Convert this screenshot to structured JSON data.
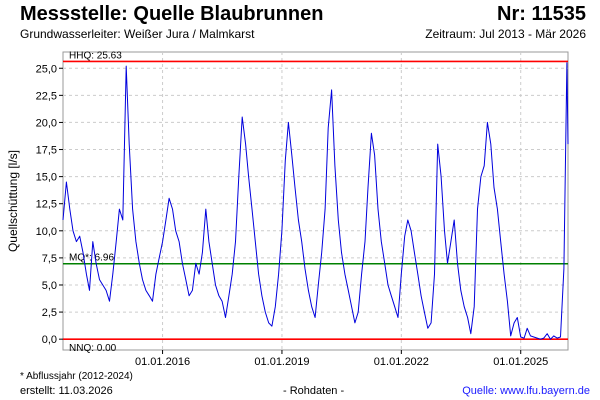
{
  "header": {
    "title": "Messstelle: Quelle Blaubrunnen",
    "number": "Nr: 11535",
    "aquifer": "Grundwasserleiter:  Weißer Jura / Malmkarst",
    "period": "Zeitraum: Jul 2013 - Mär 2026"
  },
  "footer": {
    "footnote": "* Abflussjahr (2012-2024)",
    "created": "erstellt:  11.03.2026",
    "rawdata": "- Rohdaten -",
    "source": "Quelle: www.lfu.bayern.de"
  },
  "colors": {
    "series": "#0000dd",
    "hhq": "#ff0000",
    "mq": "#008000",
    "nnq": "#ff0000",
    "grid": "#cccccc"
  },
  "chart_data": {
    "type": "line",
    "title": "Messstelle: Quelle Blaubrunnen",
    "ylabel": "Quellschüttung [l/s]",
    "xlabel": "",
    "ylim": [
      -1,
      26.5
    ],
    "xlim": [
      "2013-07-01",
      "2026-03-11"
    ],
    "grid": true,
    "y_ticks": [
      "0,0",
      "2,5",
      "5,0",
      "7,5",
      "10,0",
      "12,5",
      "15,0",
      "17,5",
      "20,0",
      "22,5",
      "25,0"
    ],
    "y_tick_values": [
      0,
      2.5,
      5,
      7.5,
      10,
      12.5,
      15,
      17.5,
      20,
      22.5,
      25
    ],
    "x_ticks": [
      {
        "date": "2016-01-01",
        "label": "01.01.2016"
      },
      {
        "date": "2019-01-01",
        "label": "01.01.2019"
      },
      {
        "date": "2022-01-01",
        "label": "01.01.2022"
      },
      {
        "date": "2025-01-01",
        "label": "01.01.2025"
      }
    ],
    "reference_lines": [
      {
        "label": "HHQ: 25.63",
        "value": 25.63
      },
      {
        "label": "MQ*: 6.96",
        "value": 6.96
      },
      {
        "label": "NNQ: 0.00",
        "value": 0.0
      }
    ],
    "series": [
      {
        "x": [
          "2013-07-01",
          "2013-08-01",
          "2013-09-01",
          "2013-10-01",
          "2013-11-01",
          "2013-12-01",
          "2014-01-01",
          "2014-02-01",
          "2014-03-01",
          "2014-04-01",
          "2014-05-01",
          "2014-06-01",
          "2014-07-01",
          "2014-08-01",
          "2014-09-01",
          "2014-10-01",
          "2014-11-01",
          "2014-12-01",
          "2015-01-01",
          "2015-02-01",
          "2015-03-01",
          "2015-04-01",
          "2015-05-01",
          "2015-06-01",
          "2015-07-01",
          "2015-08-01",
          "2015-09-01",
          "2015-10-01",
          "2015-11-01",
          "2015-12-01",
          "2016-01-01",
          "2016-02-01",
          "2016-03-01",
          "2016-04-01",
          "2016-05-01",
          "2016-06-01",
          "2016-07-01",
          "2016-08-01",
          "2016-09-01",
          "2016-10-01",
          "2016-11-01",
          "2016-12-01",
          "2017-01-01",
          "2017-02-01",
          "2017-03-01",
          "2017-04-01",
          "2017-05-01",
          "2017-06-01",
          "2017-07-01",
          "2017-08-01",
          "2017-09-01",
          "2017-10-01",
          "2017-11-01",
          "2017-12-01",
          "2018-01-01",
          "2018-02-01",
          "2018-03-01",
          "2018-04-01",
          "2018-05-01",
          "2018-06-01",
          "2018-07-01",
          "2018-08-01",
          "2018-09-01",
          "2018-10-01",
          "2018-11-01",
          "2018-12-01",
          "2019-01-01",
          "2019-02-01",
          "2019-03-01",
          "2019-04-01",
          "2019-05-01",
          "2019-06-01",
          "2019-07-01",
          "2019-08-01",
          "2019-09-01",
          "2019-10-01",
          "2019-11-01",
          "2019-12-01",
          "2020-01-01",
          "2020-02-01",
          "2020-03-01",
          "2020-04-01",
          "2020-05-01",
          "2020-06-01",
          "2020-07-01",
          "2020-08-01",
          "2020-09-01",
          "2020-10-01",
          "2020-11-01",
          "2020-12-01",
          "2021-01-01",
          "2021-02-01",
          "2021-03-01",
          "2021-04-01",
          "2021-05-01",
          "2021-06-01",
          "2021-07-01",
          "2021-08-01",
          "2021-09-01",
          "2021-10-01",
          "2021-11-01",
          "2021-12-01",
          "2022-01-01",
          "2022-02-01",
          "2022-03-01",
          "2022-04-01",
          "2022-05-01",
          "2022-06-01",
          "2022-07-01",
          "2022-08-01",
          "2022-09-01",
          "2022-10-01",
          "2022-11-01",
          "2022-12-01",
          "2023-01-01",
          "2023-02-01",
          "2023-03-01",
          "2023-04-01",
          "2023-05-01",
          "2023-06-01",
          "2023-07-01",
          "2023-08-01",
          "2023-09-01",
          "2023-10-01",
          "2023-11-01",
          "2023-12-01",
          "2024-01-01",
          "2024-02-01",
          "2024-03-01",
          "2024-04-01",
          "2024-05-01",
          "2024-06-01",
          "2024-07-01",
          "2024-08-01",
          "2024-09-01",
          "2024-10-01",
          "2024-11-01",
          "2024-12-01",
          "2025-01-01",
          "2025-02-01",
          "2025-03-01",
          "2025-04-01",
          "2025-05-01",
          "2025-06-01",
          "2025-07-01",
          "2025-08-01",
          "2025-09-01",
          "2025-10-01",
          "2025-11-01",
          "2025-12-01",
          "2026-01-01",
          "2026-02-01",
          "2026-03-01",
          "2026-03-11"
        ],
        "y": [
          11.0,
          14.5,
          12.0,
          10.0,
          9.0,
          9.5,
          8.0,
          6.0,
          4.5,
          9.0,
          7.0,
          5.5,
          5.0,
          4.5,
          3.5,
          6.0,
          9.0,
          12.0,
          11.0,
          25.2,
          18.0,
          12.0,
          9.0,
          7.0,
          5.5,
          4.5,
          4.0,
          3.5,
          6.0,
          7.5,
          9.0,
          11.0,
          13.0,
          12.0,
          10.0,
          9.0,
          7.0,
          5.5,
          4.0,
          4.5,
          7.0,
          6.0,
          8.0,
          12.0,
          9.0,
          7.0,
          5.0,
          4.0,
          3.5,
          2.0,
          4.0,
          6.0,
          9.0,
          15.0,
          20.5,
          18.0,
          15.0,
          12.0,
          9.0,
          6.0,
          4.0,
          2.5,
          1.5,
          1.2,
          3.0,
          6.0,
          10.0,
          16.5,
          20.0,
          17.0,
          14.0,
          11.0,
          9.0,
          6.5,
          4.5,
          3.0,
          2.0,
          5.0,
          8.0,
          12.0,
          19.5,
          23.0,
          16.0,
          11.0,
          8.0,
          6.0,
          4.5,
          3.0,
          1.5,
          2.5,
          6.0,
          9.0,
          14.0,
          19.0,
          17.0,
          12.0,
          9.0,
          7.0,
          5.0,
          4.0,
          3.0,
          2.0,
          6.0,
          9.5,
          11.0,
          10.0,
          8.0,
          6.0,
          4.0,
          2.5,
          1.0,
          1.5,
          6.0,
          18.0,
          15.0,
          10.0,
          7.0,
          9.0,
          11.0,
          7.0,
          4.5,
          3.0,
          2.0,
          0.5,
          3.0,
          12.0,
          15.0,
          16.0,
          20.0,
          18.0,
          14.0,
          12.0,
          9.0,
          6.0,
          3.5,
          0.3,
          1.5,
          2.0,
          0.2,
          0.1,
          1.0,
          0.3,
          0.2,
          0.1,
          0.0,
          0.1,
          0.5,
          0.0,
          0.3,
          0.1,
          0.2,
          6.5,
          25.5,
          18.0
        ]
      }
    ]
  }
}
